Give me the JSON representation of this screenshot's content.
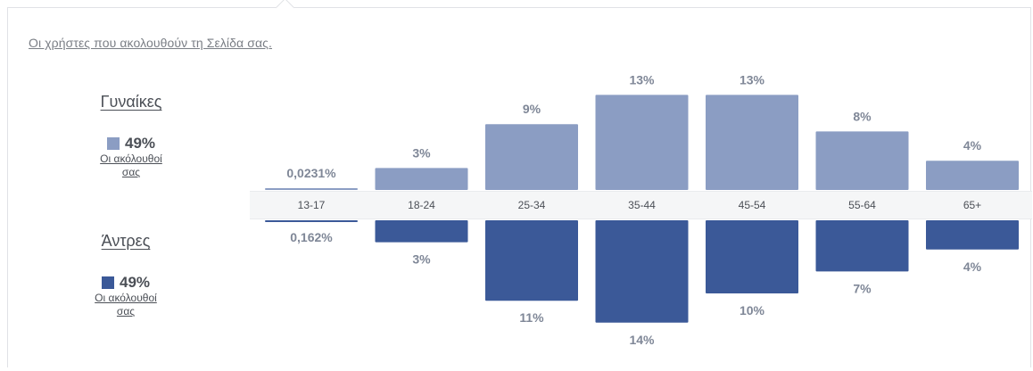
{
  "header": {
    "title": "Οι χρήστες που ακολουθούν τη Σελίδα σας."
  },
  "legend": {
    "women": {
      "title": "Γυναίκες",
      "percent": "49%",
      "subtitle": "Οι ακόλουθοί σας",
      "color": "#8b9dc3"
    },
    "men": {
      "title": "Άντρες",
      "percent": "49%",
      "subtitle": "Οι ακόλουθοί σας",
      "color": "#3b5998"
    }
  },
  "chart_data": {
    "type": "bar",
    "orientation": "diverging",
    "categories": [
      "13-17",
      "18-24",
      "25-34",
      "35-44",
      "45-54",
      "55-64",
      "65+"
    ],
    "series": [
      {
        "name": "Γυναίκες",
        "values": [
          0.0231,
          3,
          9,
          13,
          13,
          8,
          4
        ],
        "labels": [
          "0,0231%",
          "3%",
          "9%",
          "13%",
          "13%",
          "8%",
          "4%"
        ],
        "color": "#8b9dc3"
      },
      {
        "name": "Άντρες",
        "values": [
          0.162,
          3,
          11,
          14,
          10,
          7,
          4
        ],
        "labels": [
          "0,162%",
          "3%",
          "11%",
          "14%",
          "10%",
          "7%",
          "4%"
        ],
        "color": "#3b5998"
      }
    ],
    "title": "Οι χρήστες που ακολουθούν τη Σελίδα σας.",
    "ylim": [
      0,
      14
    ]
  }
}
